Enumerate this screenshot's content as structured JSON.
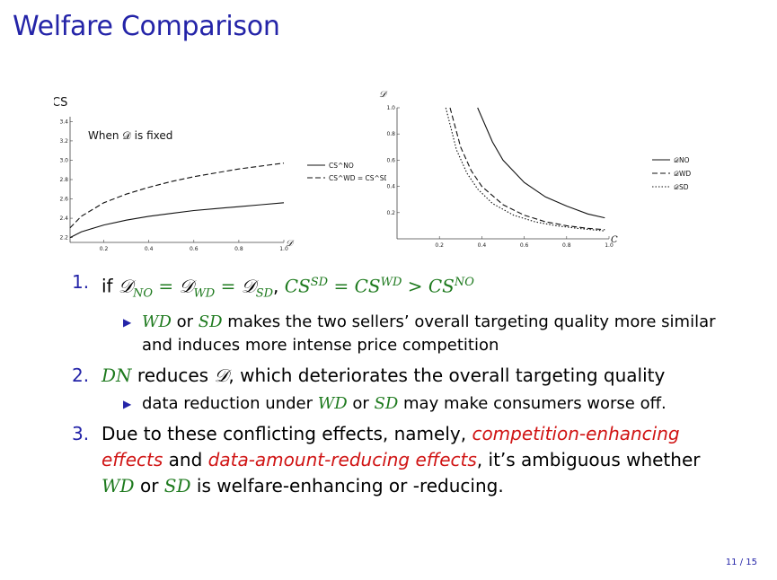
{
  "slide": {
    "title": "Welfare Comparison",
    "page_number": "11 / 15"
  },
  "chart_data": [
    {
      "type": "line",
      "title": "",
      "ylabel": "CS",
      "xlabel": "𝒟",
      "annotation": "When 𝒟 is fixed",
      "xlim": [
        0.05,
        1.0
      ],
      "ylim": [
        2.15,
        3.45
      ],
      "xticks": [
        "0.2",
        "0.4",
        "0.6",
        "0.8",
        "1.0"
      ],
      "yticks": [
        "2.2",
        "2.4",
        "2.6",
        "2.8",
        "3.0",
        "3.2",
        "3.4"
      ],
      "series": [
        {
          "name": "CS^NO",
          "style": "solid",
          "x": [
            0.05,
            0.1,
            0.2,
            0.3,
            0.4,
            0.5,
            0.6,
            0.7,
            0.8,
            0.9,
            1.0
          ],
          "y": [
            2.2,
            2.26,
            2.33,
            2.38,
            2.42,
            2.45,
            2.48,
            2.5,
            2.52,
            2.54,
            2.56
          ]
        },
        {
          "name": "CS^WD = CS^SD",
          "style": "dashed",
          "x": [
            0.05,
            0.1,
            0.2,
            0.3,
            0.4,
            0.5,
            0.6,
            0.7,
            0.8,
            0.9,
            1.0
          ],
          "y": [
            2.3,
            2.42,
            2.56,
            2.65,
            2.72,
            2.78,
            2.83,
            2.87,
            2.91,
            2.94,
            2.97
          ]
        }
      ],
      "legend_position": "right"
    },
    {
      "type": "line",
      "title": "",
      "ylabel": "𝒟",
      "xlabel": "C",
      "xlim": [
        0.0,
        1.0
      ],
      "ylim": [
        0.0,
        1.0
      ],
      "xticks": [
        "0.2",
        "0.4",
        "0.6",
        "0.8",
        "1.0"
      ],
      "yticks": [
        "0.2",
        "0.4",
        "0.6",
        "0.8",
        "1.0"
      ],
      "series": [
        {
          "name": "𝒟NO",
          "style": "solid",
          "x": [
            0.38,
            0.45,
            0.5,
            0.6,
            0.7,
            0.8,
            0.9,
            0.98
          ],
          "y": [
            1.0,
            0.74,
            0.6,
            0.43,
            0.32,
            0.25,
            0.19,
            0.16
          ]
        },
        {
          "name": "𝒟WD",
          "style": "dashed",
          "x": [
            0.25,
            0.3,
            0.35,
            0.4,
            0.5,
            0.6,
            0.7,
            0.8,
            0.9,
            0.98
          ],
          "y": [
            1.0,
            0.7,
            0.52,
            0.4,
            0.26,
            0.18,
            0.13,
            0.1,
            0.08,
            0.07
          ]
        },
        {
          "name": "𝒟SD",
          "style": "dotted",
          "x": [
            0.23,
            0.28,
            0.33,
            0.38,
            0.45,
            0.55,
            0.65,
            0.75,
            0.85,
            0.98
          ],
          "y": [
            1.0,
            0.68,
            0.5,
            0.38,
            0.27,
            0.18,
            0.13,
            0.1,
            0.08,
            0.06
          ]
        }
      ],
      "legend_position": "right"
    }
  ],
  "items": [
    {
      "number": "1.",
      "parts": [
        "if ",
        "𝒟",
        "NO",
        " = ",
        "𝒟",
        "WD",
        " = ",
        "𝒟",
        "SD",
        ", ",
        "CS",
        "SD",
        " = CS",
        "WD",
        " > CS",
        "NO"
      ],
      "sub": [
        {
          "m1": "WD",
          "t1": " or ",
          "m2": "SD",
          "t2": " makes the two sellers’ overall targeting quality more similar and induces more intense price competition"
        }
      ]
    },
    {
      "number": "2.",
      "m1": "DN",
      "t1": " reduces ",
      "d": "𝒟",
      "t2": ", which deteriorates the overall targeting quality",
      "sub": [
        {
          "t0": "data reduction under ",
          "m1": "WD",
          "t1": " or ",
          "m2": "SD",
          "t2": " may make consumers worse off."
        }
      ]
    },
    {
      "number": "3.",
      "t1": "Due to these conflicting effects, namely, ",
      "r1": "competition-enhancing effects",
      "t2": " and ",
      "r2": "data-amount-reducing effects",
      "t3": ", it’s ambiguous whether ",
      "m1": "WD",
      "t4": " or ",
      "m2": "SD",
      "t5": " is welfare-enhancing or -reducing."
    }
  ]
}
